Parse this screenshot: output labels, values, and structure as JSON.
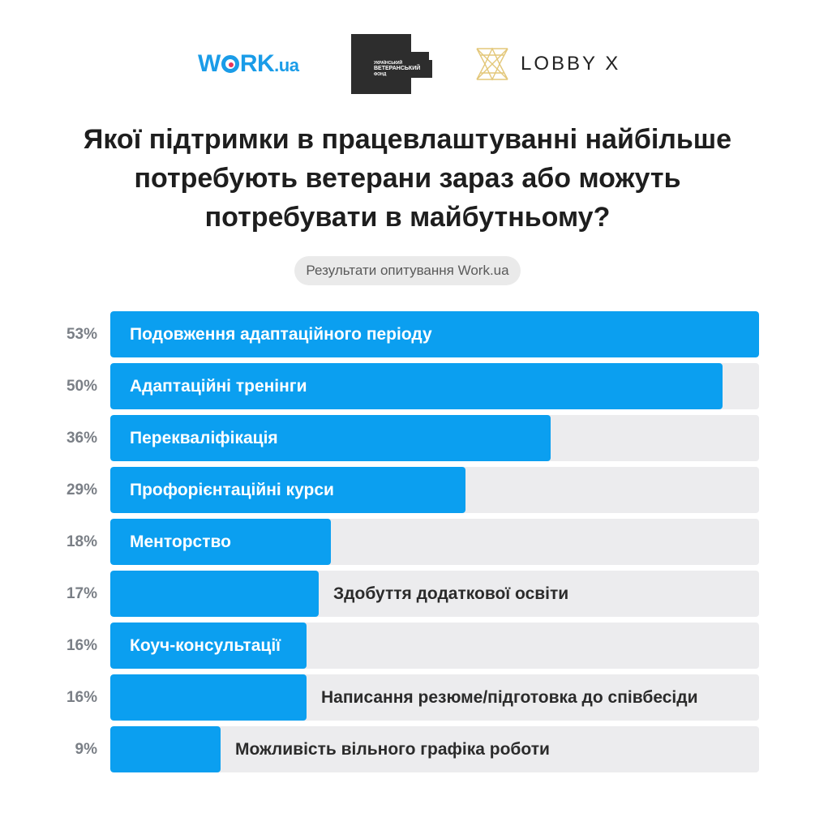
{
  "logos": {
    "work": {
      "w": "W",
      "rk": "RK",
      "ua": ".ua"
    },
    "fund": {
      "line1": "УКРАЇНСЬКИЙ",
      "line2": "ВЕТЕРАНСЬКИЙ",
      "line3": "ФОНД"
    },
    "lobby": "LOBBY X"
  },
  "title_lines": [
    "Якої підтримки в працевлаштуванні найбільше",
    "потребують ветерани зараз або можуть",
    "потребувати в майбутньому?"
  ],
  "source_pill": "Результати опитування Work.ua",
  "colors": {
    "bar": "#0b9ff0",
    "track": "#ececee",
    "pct": "#7a7f86"
  },
  "chart_data": {
    "type": "bar",
    "orientation": "horizontal",
    "title": "Якої підтримки в працевлаштуванні найбільше потребують ветерани зараз або можуть потребувати в майбутньому?",
    "subtitle": "Результати опитування Work.ua",
    "categories": [
      "Подовження адаптаційного періоду",
      "Адаптаційні тренінги",
      "Перекваліфікація",
      "Профорієнтаційні курси",
      "Менторство",
      "Здобуття додаткової освіти",
      "Коуч-консультації",
      "Написання резюме/підготовка до співбесіди",
      "Можливість вільного графіка роботи"
    ],
    "values": [
      53,
      50,
      36,
      29,
      18,
      17,
      16,
      16,
      9
    ],
    "value_labels": [
      "53%",
      "50%",
      "36%",
      "29%",
      "18%",
      "17%",
      "16%",
      "16%",
      "9%"
    ],
    "xlim": [
      0,
      53
    ],
    "grid": false,
    "legend": "none"
  }
}
